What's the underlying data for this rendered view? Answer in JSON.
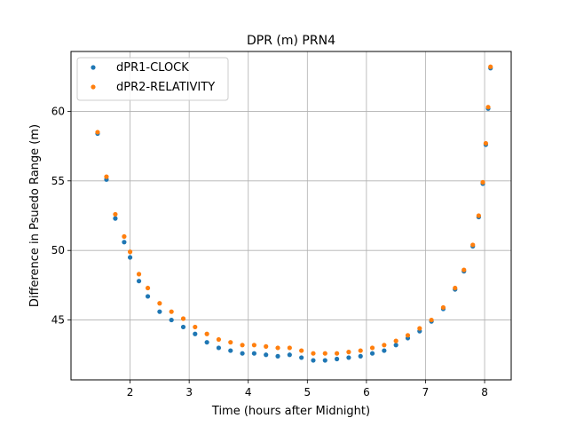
{
  "chart_data": {
    "type": "scatter",
    "title": "DPR (m) PRN4",
    "xlabel": "Time (hours after Midnight)",
    "ylabel": "Difference in Psuedo Range (m)",
    "xlim": [
      1.0,
      8.45
    ],
    "ylim": [
      40.7,
      64.3
    ],
    "xticks": [
      2,
      3,
      4,
      5,
      6,
      7,
      8
    ],
    "yticks": [
      45,
      50,
      55,
      60
    ],
    "grid": true,
    "legend_position": "upper-left",
    "colors": {
      "clock": "#1f77b4",
      "relativity": "#ff7f0e"
    },
    "series": [
      {
        "name": "dPR1-CLOCK",
        "x": [
          1.45,
          1.6,
          1.75,
          1.9,
          2.0,
          2.15,
          2.3,
          2.5,
          2.7,
          2.9,
          3.1,
          3.3,
          3.5,
          3.7,
          3.9,
          4.1,
          4.3,
          4.5,
          4.7,
          4.9,
          5.1,
          5.3,
          5.5,
          5.7,
          5.9,
          6.1,
          6.3,
          6.5,
          6.7,
          6.9,
          7.1,
          7.3,
          7.5,
          7.65,
          7.8,
          7.9,
          7.97,
          8.02,
          8.06,
          8.1
        ],
        "y": [
          58.4,
          55.1,
          52.3,
          50.6,
          49.5,
          47.8,
          46.7,
          45.6,
          45.0,
          44.5,
          44.0,
          43.4,
          43.0,
          42.8,
          42.6,
          42.6,
          42.5,
          42.4,
          42.5,
          42.3,
          42.1,
          42.1,
          42.2,
          42.3,
          42.4,
          42.6,
          42.8,
          43.2,
          43.7,
          44.2,
          44.9,
          45.8,
          47.2,
          48.5,
          50.3,
          52.4,
          54.8,
          57.6,
          60.2,
          63.1
        ]
      },
      {
        "name": "dPR2-RELATIVITY",
        "x": [
          1.45,
          1.6,
          1.75,
          1.9,
          2.0,
          2.15,
          2.3,
          2.5,
          2.7,
          2.9,
          3.1,
          3.3,
          3.5,
          3.7,
          3.9,
          4.1,
          4.3,
          4.5,
          4.7,
          4.9,
          5.1,
          5.3,
          5.5,
          5.7,
          5.9,
          6.1,
          6.3,
          6.5,
          6.7,
          6.9,
          7.1,
          7.3,
          7.5,
          7.65,
          7.8,
          7.9,
          7.97,
          8.02,
          8.06,
          8.1
        ],
        "y": [
          58.5,
          55.3,
          52.6,
          51.0,
          49.9,
          48.3,
          47.3,
          46.2,
          45.6,
          45.1,
          44.5,
          44.0,
          43.6,
          43.4,
          43.2,
          43.2,
          43.1,
          43.0,
          43.0,
          42.8,
          42.6,
          42.6,
          42.6,
          42.7,
          42.8,
          43.0,
          43.2,
          43.5,
          43.9,
          44.4,
          45.0,
          45.9,
          47.3,
          48.6,
          50.4,
          52.5,
          54.9,
          57.7,
          60.3,
          63.2
        ]
      }
    ]
  }
}
